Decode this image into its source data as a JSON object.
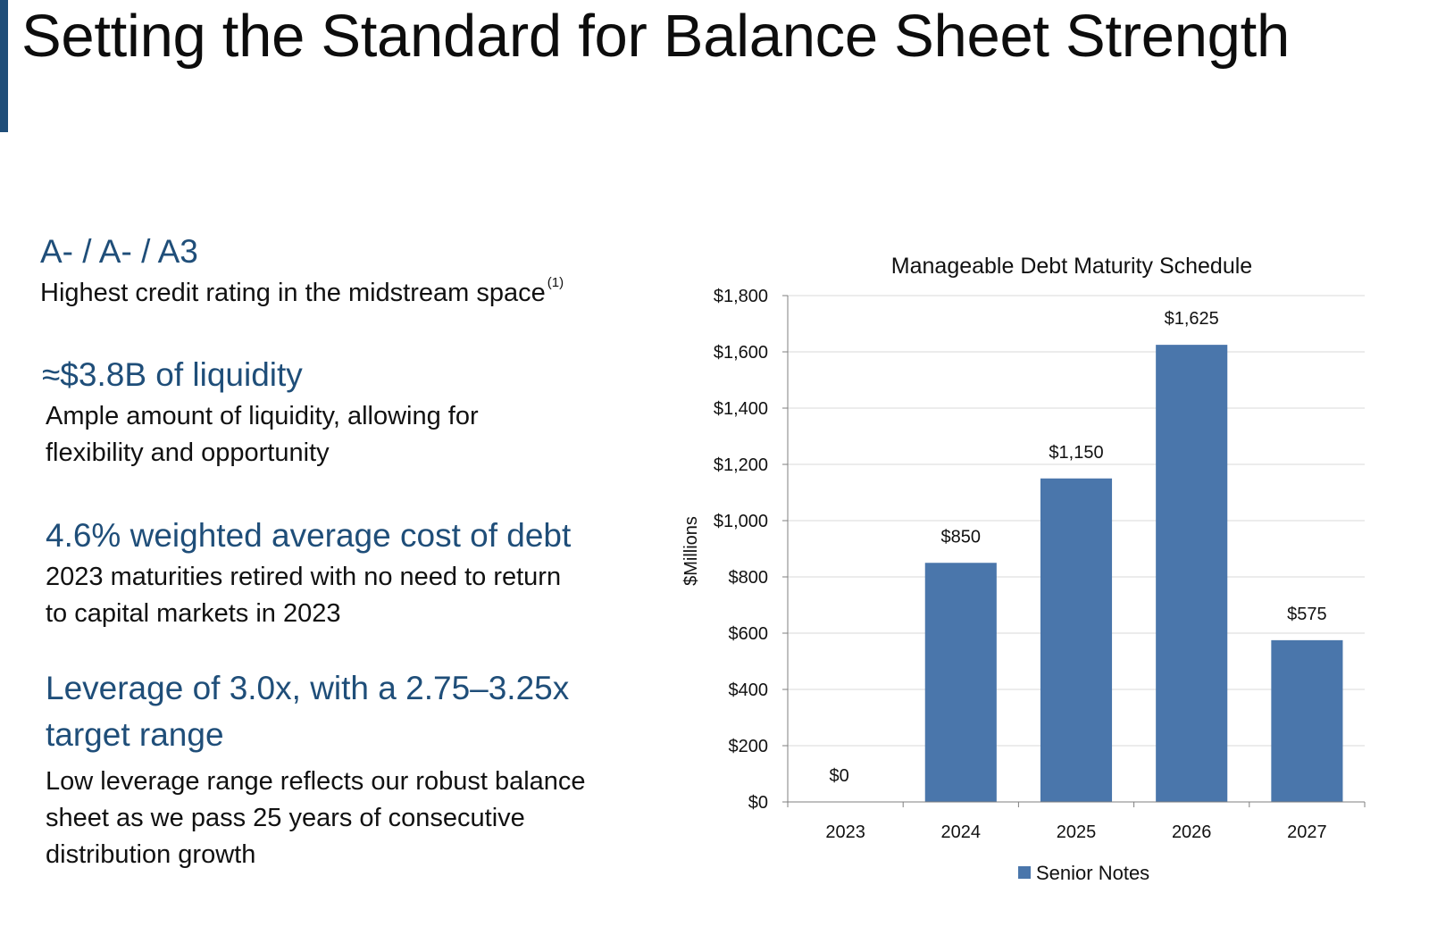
{
  "slide": {
    "title": "Setting the Standard for Balance Sheet Strength",
    "accent_color": "#1f4e79"
  },
  "highlights": [
    {
      "heading": "A- / A- / A3",
      "text": "Highest credit rating in the midstream space",
      "footnote": "(1)"
    },
    {
      "heading": "≈$3.8B of liquidity",
      "text_lines": [
        "Ample amount of liquidity, allowing for",
        "flexibility and opportunity"
      ]
    },
    {
      "heading": "4.6% weighted average cost of debt",
      "text_lines": [
        "2023 maturities retired with no need to return",
        "to capital markets in 2023"
      ]
    },
    {
      "heading_lines": [
        "Leverage of 3.0x, with a 2.75–3.25x",
        "target range"
      ],
      "text_lines": [
        "Low leverage range reflects our robust balance",
        "sheet as we pass 25 years of consecutive",
        "distribution growth"
      ]
    }
  ],
  "chart_data": {
    "type": "bar",
    "title": "Manageable Debt Maturity Schedule",
    "ylabel": "$Millions",
    "xlabel": "",
    "categories": [
      "2023",
      "2024",
      "2025",
      "2026",
      "2027"
    ],
    "series": [
      {
        "name": "Senior Notes",
        "values": [
          0,
          850,
          1150,
          1625,
          575
        ],
        "color": "#4a76ab"
      }
    ],
    "data_labels": [
      "$0",
      "$850",
      "$1,150",
      "$1,625",
      "$575"
    ],
    "ylim": [
      0,
      1800
    ],
    "yticks": [
      0,
      200,
      400,
      600,
      800,
      1000,
      1200,
      1400,
      1600,
      1800
    ],
    "ytick_labels": [
      "$0",
      "$200",
      "$400",
      "$600",
      "$800",
      "$1,000",
      "$1,200",
      "$1,400",
      "$1,600",
      "$1,800"
    ],
    "grid": true,
    "legend": "bottom"
  }
}
